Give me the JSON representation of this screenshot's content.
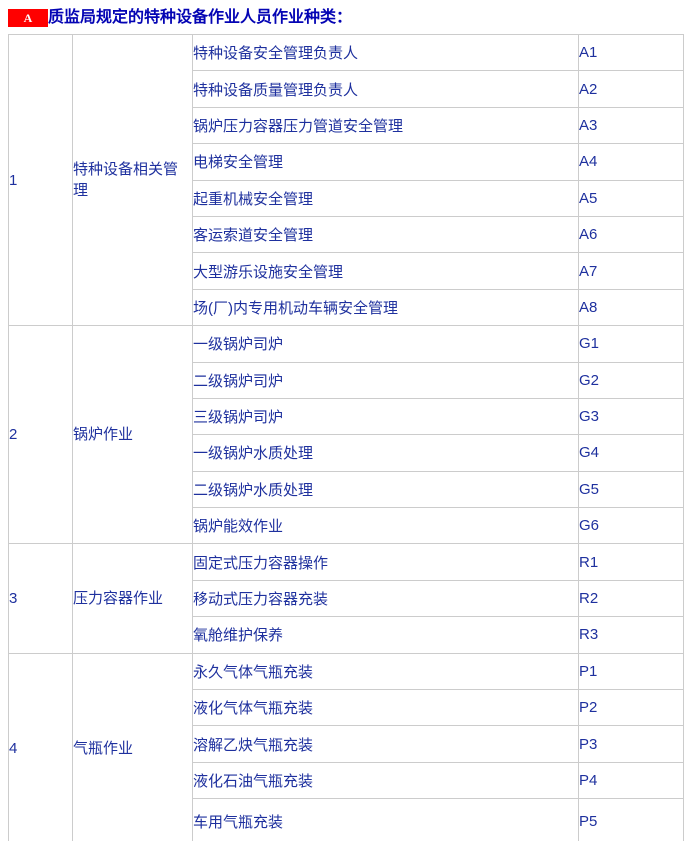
{
  "header": {
    "badge": "A",
    "title": "质监局规定的特种设备作业人员作业种类："
  },
  "colors": {
    "badge_bg": "#FF0000",
    "badge_text": "#FFFFFF",
    "title_text": "#0404B4",
    "cell_text": "#1E309E",
    "border": "#CCCCCC"
  },
  "table": {
    "sections": [
      {
        "no": "1",
        "category": "特种设备相关管理",
        "items": [
          {
            "name": "特种设备安全管理负责人",
            "code": "A1"
          },
          {
            "name": "特种设备质量管理负责人",
            "code": "A2"
          },
          {
            "name": "锅炉压力容器压力管道安全管理",
            "code": "A3"
          },
          {
            "name": "电梯安全管理",
            "code": "A4"
          },
          {
            "name": "起重机械安全管理",
            "code": "A5"
          },
          {
            "name": "客运索道安全管理",
            "code": "A6"
          },
          {
            "name": "大型游乐设施安全管理",
            "code": "A7"
          },
          {
            "name": "场(厂)内专用机动车辆安全管理",
            "code": "A8"
          }
        ]
      },
      {
        "no": "2",
        "category": "锅炉作业",
        "items": [
          {
            "name": "一级锅炉司炉",
            "code": "G1"
          },
          {
            "name": "二级锅炉司炉",
            "code": "G2"
          },
          {
            "name": "三级锅炉司炉",
            "code": "G3"
          },
          {
            "name": "一级锅炉水质处理",
            "code": "G4"
          },
          {
            "name": "二级锅炉水质处理",
            "code": "G5"
          },
          {
            "name": "锅炉能效作业",
            "code": "G6"
          }
        ]
      },
      {
        "no": "3",
        "category": "压力容器作业",
        "items": [
          {
            "name": "固定式压力容器操作",
            "code": "R1"
          },
          {
            "name": "移动式压力容器充装",
            "code": "R2"
          },
          {
            "name": "氧舱维护保养",
            "code": "R3"
          }
        ]
      },
      {
        "no": "4",
        "category": "气瓶作业",
        "items": [
          {
            "name": "永久气体气瓶充装",
            "code": "P1"
          },
          {
            "name": "液化气体气瓶充装",
            "code": "P2"
          },
          {
            "name": "溶解乙炔气瓶充装",
            "code": "P3"
          },
          {
            "name": "液化石油气瓶充装",
            "code": "P4"
          },
          {
            "name": "车用气瓶充装",
            "code": "P5"
          }
        ]
      }
    ]
  }
}
